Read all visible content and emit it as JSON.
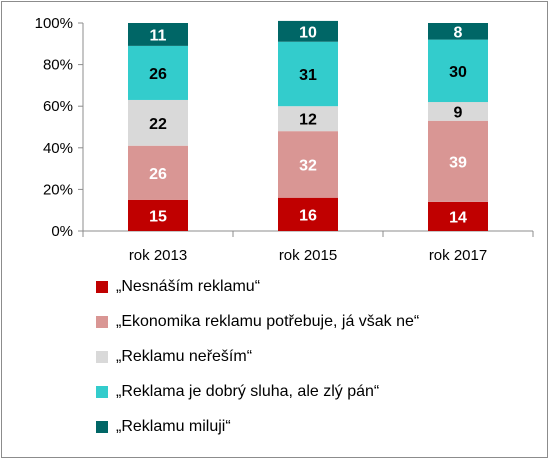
{
  "chart_data": {
    "type": "bar",
    "stacked": true,
    "percent": true,
    "categories": [
      "rok 2013",
      "rok 2015",
      "rok 2017"
    ],
    "series": [
      {
        "name": "„Nesnáším reklamu“",
        "color": "#c00000",
        "label_color": "#ffffff",
        "values": [
          15,
          16,
          14
        ]
      },
      {
        "name": "„Ekonomika reklamu potřebuje, já však ne“",
        "color": "#d99694",
        "label_color": "#ffffff",
        "values": [
          26,
          32,
          39
        ]
      },
      {
        "name": "„Reklamu neřeším“",
        "color": "#d9d9d9",
        "label_color": "#000000",
        "values": [
          22,
          12,
          9
        ]
      },
      {
        "name": "„Reklama je dobrý sluha, ale zlý pán“",
        "color": "#33cccc",
        "label_color": "#000000",
        "values": [
          26,
          31,
          30
        ]
      },
      {
        "name": "„Reklamu miluji“",
        "color": "#006666",
        "label_color": "#ffffff",
        "values": [
          11,
          10,
          8
        ]
      }
    ],
    "yticks": [
      "0%",
      "20%",
      "40%",
      "60%",
      "80%",
      "100%"
    ],
    "ylim": [
      0,
      100
    ],
    "grid": false,
    "legend_position": "bottom"
  }
}
